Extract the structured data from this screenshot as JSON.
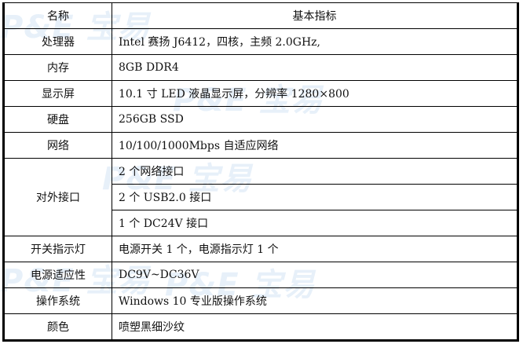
{
  "watermark": "P&E 宝易",
  "header": {
    "name": "名称",
    "spec": "基本指标"
  },
  "rows": [
    {
      "name": "处理器",
      "values": [
        "Intel 赛扬 J6412，四核，主频 2.0GHz,"
      ]
    },
    {
      "name": "内存",
      "values": [
        "8GB DDR4"
      ]
    },
    {
      "name": "显示屏",
      "values": [
        "10.1 寸 LED 液晶显示屏，分辨率 1280×800"
      ]
    },
    {
      "name": "硬盘",
      "values": [
        "256GB SSD"
      ]
    },
    {
      "name": "网络",
      "values": [
        "10/100/1000Mbps 自适应网络"
      ]
    },
    {
      "name": "对外接口",
      "values": [
        "2 个网络接口",
        "2 个 USB2.0 接口",
        "1 个 DC24V 接口"
      ]
    },
    {
      "name": "开关指示灯",
      "values": [
        "电源开关 1 个，电源指示灯 1 个"
      ]
    },
    {
      "name": "电源适应性",
      "values": [
        "DC9V~DC36V"
      ]
    },
    {
      "name": "操作系统",
      "values": [
        "Windows 10 专业版操作系统"
      ]
    },
    {
      "name": "颜色",
      "values": [
        "喷塑黑细沙纹"
      ]
    }
  ]
}
